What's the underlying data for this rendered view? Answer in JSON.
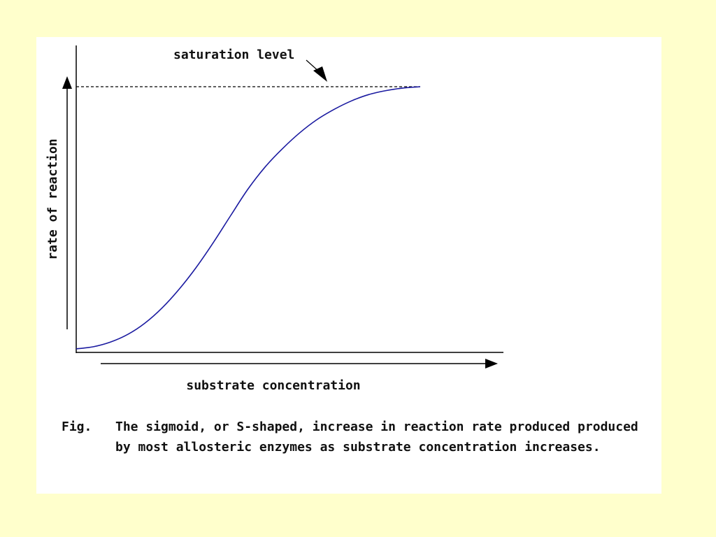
{
  "chart_data": {
    "type": "line",
    "xlabel": "substrate concentration",
    "ylabel": "rate of reaction",
    "annotation": "saturation level",
    "colors": {
      "curve": "#1a1aa0",
      "axis": "#000000"
    },
    "xlim": [
      0,
      1
    ],
    "ylim": [
      0,
      1
    ],
    "saturation": 1.0,
    "series": [
      {
        "x": [
          0,
          0.05,
          0.1,
          0.15,
          0.2,
          0.25,
          0.3,
          0.35,
          0.4,
          0.45,
          0.5,
          0.55,
          0.6,
          0.65,
          0.7,
          0.75,
          0.8,
          0.85,
          0.9,
          0.95,
          1.0
        ],
        "y": [
          0.003,
          0.011,
          0.029,
          0.058,
          0.101,
          0.159,
          0.231,
          0.315,
          0.41,
          0.512,
          0.612,
          0.696,
          0.765,
          0.825,
          0.875,
          0.914,
          0.946,
          0.97,
          0.985,
          0.995,
          1.0
        ]
      }
    ]
  },
  "caption": {
    "label": "Fig.",
    "text": "The sigmoid, or S-shaped, increase in reaction rate produced produced by most allosteric enzymes as substrate concentration increases."
  }
}
